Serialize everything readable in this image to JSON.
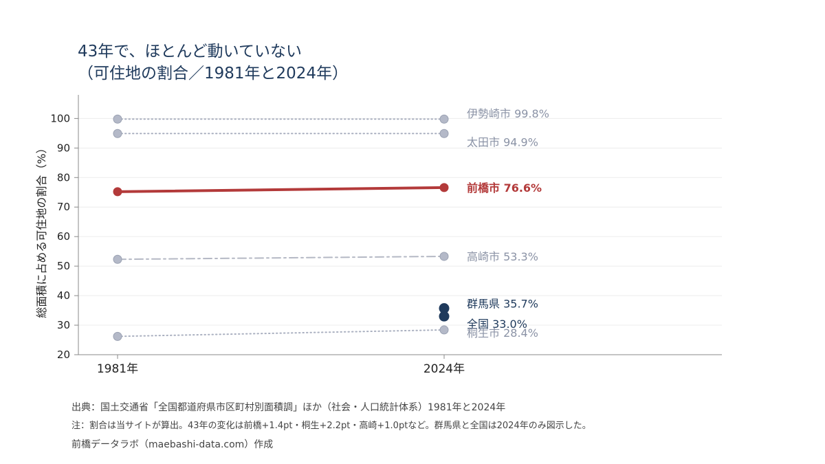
{
  "header": {
    "title_line1": "43年で、ほとんど動いていない",
    "title_line2": "（可住地の割合／1981年と2024年）"
  },
  "chart_data": {
    "type": "line",
    "x": [
      "1981年",
      "2024年"
    ],
    "ylabel": "総面積に占める可住地の割合（%）",
    "ylim": [
      20,
      108
    ],
    "yticks": [
      20,
      30,
      40,
      50,
      60,
      70,
      80,
      90,
      100
    ],
    "grid": true,
    "series": [
      {
        "name": "伊勢崎市",
        "values": [
          99.8,
          99.8
        ],
        "label": "伊勢崎市 99.8%",
        "style": "dotted",
        "color": "#aab0c0",
        "label_color": "#8b93a6",
        "bold": false
      },
      {
        "name": "太田市",
        "values": [
          94.9,
          94.9
        ],
        "label": "太田市 94.9%",
        "style": "dotted",
        "color": "#aab0c0",
        "label_color": "#8b93a6",
        "bold": false
      },
      {
        "name": "前橋市",
        "values": [
          75.2,
          76.6
        ],
        "label": "前橋市 76.6%",
        "style": "solid",
        "color": "#b33a3a",
        "label_color": "#b33a3a",
        "bold": true
      },
      {
        "name": "高崎市",
        "values": [
          52.3,
          53.3
        ],
        "label": "高崎市 53.3%",
        "style": "dashdot",
        "color": "#b4b8c4",
        "label_color": "#8b93a6",
        "bold": false
      },
      {
        "name": "群馬県",
        "values": [
          null,
          35.7
        ],
        "label": "群馬県 35.7%",
        "style": "point",
        "color": "#1f3a5c",
        "label_color": "#1f3a5c",
        "bold": false
      },
      {
        "name": "全国",
        "values": [
          null,
          33.0
        ],
        "label": "全国 33.0%",
        "style": "point",
        "color": "#1f3a5c",
        "label_color": "#1f3a5c",
        "bold": false
      },
      {
        "name": "桐生市",
        "values": [
          26.2,
          28.4
        ],
        "label": "桐生市 28.4%",
        "style": "dotted",
        "color": "#aab0c0",
        "label_color": "#8b93a6",
        "bold": false
      }
    ]
  },
  "footer": {
    "source": "出典：国土交通省「全国都道府県市区町村別面積調」ほか（社会・人口統計体系）1981年と2024年",
    "note": "注：割合は当サイトが算出。43年の変化は前橋+1.4pt・桐生+2.2pt・高崎+1.0ptなど。群馬県と全国は2024年のみ図示した。",
    "credit": "前橋データラボ（maebashi-data.com）作成"
  }
}
